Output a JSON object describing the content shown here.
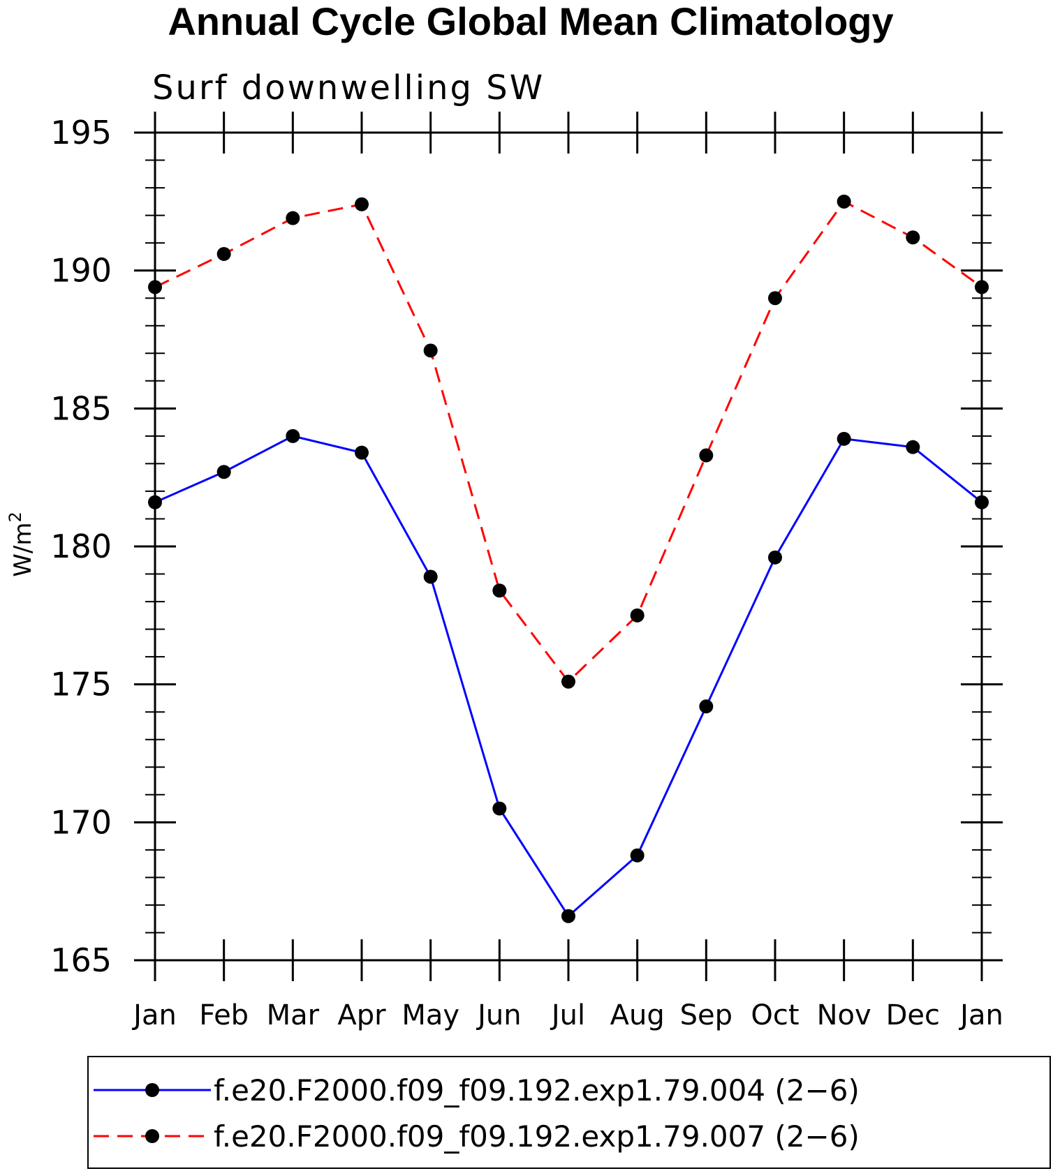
{
  "chart_data": {
    "type": "line",
    "title": "Annual Cycle Global Mean Climatology",
    "subtitle": "Surf downwelling SW",
    "ylabel": "W/m",
    "ylabel_sup": "2",
    "xlabel": "",
    "categories": [
      "Jan",
      "Feb",
      "Mar",
      "Apr",
      "May",
      "Jun",
      "Jul",
      "Aug",
      "Sep",
      "Oct",
      "Nov",
      "Dec",
      "Jan"
    ],
    "ylim": [
      165,
      195
    ],
    "yticks": [
      165,
      170,
      175,
      180,
      185,
      190,
      195
    ],
    "series": [
      {
        "name": "f.e20.F2000.f09_f09.192.exp1.79.004 (2−6)",
        "color": "#0000ff",
        "dash": "solid",
        "values": [
          181.6,
          182.7,
          184.0,
          183.4,
          178.9,
          170.5,
          166.6,
          168.8,
          174.2,
          179.6,
          183.9,
          183.6,
          181.6
        ]
      },
      {
        "name": "f.e20.F2000.f09_f09.192.exp1.79.007 (2−6)",
        "color": "#ff0000",
        "dash": "dashed",
        "values": [
          189.4,
          190.6,
          191.9,
          192.4,
          187.1,
          178.4,
          175.1,
          177.5,
          183.3,
          189.0,
          192.5,
          191.2,
          189.4
        ]
      }
    ],
    "marker_color": "#000000",
    "legend_position": "bottom"
  }
}
